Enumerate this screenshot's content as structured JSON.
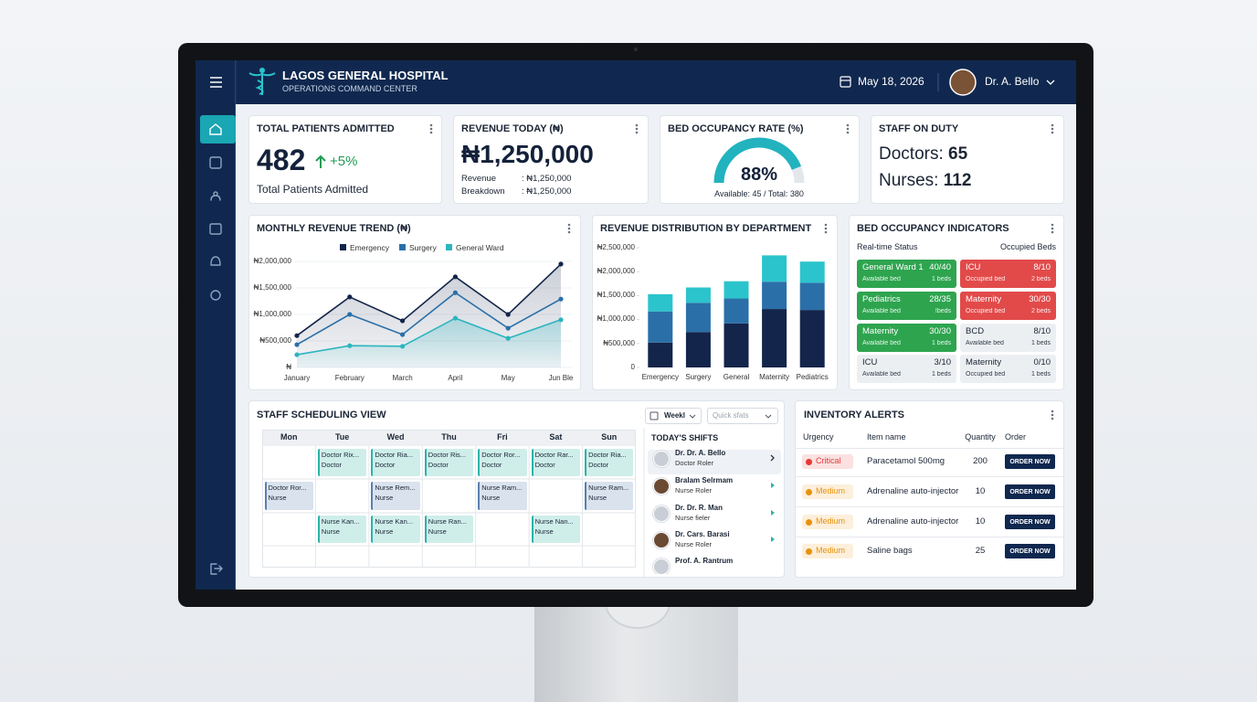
{
  "header": {
    "title": "LAGOS GENERAL HOSPITAL",
    "subtitle": "OPERATIONS COMMAND CENTER",
    "date": "May 18, 2026",
    "user": "Dr. A. Bello"
  },
  "kpis": {
    "patients": {
      "title": "TOTAL PATIENTS ADMITTED",
      "value": "482",
      "change": "+5%",
      "caption": "Total Patients Admitted"
    },
    "revenue": {
      "title": "REVENUE TODAY (₦)",
      "value": "₦1,250,000",
      "rows": [
        [
          "Revenue",
          ": ₦1,250,000"
        ],
        [
          "Breakdown",
          ": ₦1,250,000"
        ]
      ]
    },
    "occupancy": {
      "title": "BED OCCUPANCY RATE (%)",
      "gauge": {
        "value": 88,
        "label": "88%",
        "ylim": [
          0,
          100
        ],
        "color": "#22b3bf"
      },
      "caption": "Available: 45 / Total: 380"
    },
    "staff": {
      "title": "STAFF ON DUTY",
      "rows": [
        [
          "Doctors: ",
          "65"
        ],
        [
          "Nurses: ",
          "112"
        ]
      ]
    }
  },
  "chart_data": [
    {
      "type": "line",
      "title": "MONTHLY REVENUE TREND (₦)",
      "legend": "top",
      "categories": [
        "January",
        "February",
        "March",
        "April",
        "May",
        "Jun Ble"
      ],
      "series": [
        {
          "name": "Emergency",
          "color": "#13254a",
          "values": [
            600000,
            1330000,
            880000,
            1710000,
            1000000,
            1950000
          ]
        },
        {
          "name": "Surgery",
          "color": "#2a6fa8",
          "values": [
            430000,
            1000000,
            620000,
            1410000,
            740000,
            1290000
          ]
        },
        {
          "name": "General Ward",
          "color": "#2bb5bf",
          "values": [
            240000,
            410000,
            400000,
            930000,
            550000,
            900000
          ]
        }
      ],
      "ylim": [
        0,
        2000000
      ],
      "yticks": [
        {
          "value": 0,
          "label": "₦"
        },
        {
          "value": 500000,
          "label": "₦500,000"
        },
        {
          "value": 1000000,
          "label": "₦1,000,000"
        },
        {
          "value": 1500000,
          "label": "₦1,500,000"
        },
        {
          "value": 2000000,
          "label": "₦2,000,000"
        }
      ],
      "grid": true
    },
    {
      "type": "bar",
      "stacked": true,
      "title": "REVENUE DISTRIBUTION BY DEPARTMENT",
      "categories": [
        "Emergency",
        "Surgery",
        "General",
        "Maternity",
        "Pediatrics"
      ],
      "series": [
        {
          "color": "#13254a",
          "values": [
            520000,
            740000,
            920000,
            1220000,
            1200000
          ]
        },
        {
          "color": "#2a6fa8",
          "values": [
            650000,
            610000,
            520000,
            570000,
            570000
          ]
        },
        {
          "color": "#2bc4cc",
          "values": [
            360000,
            320000,
            360000,
            550000,
            440000
          ]
        }
      ],
      "ylim": [
        0,
        2500000
      ],
      "yticks": [
        0,
        {
          "value": 500000,
          "label": "₦500,000"
        },
        {
          "value": 1000000,
          "label": "₦1,000,000"
        },
        {
          "value": 1500000,
          "label": "₦1,500,000"
        },
        {
          "value": 2000000,
          "label": "₦2,000,000"
        },
        {
          "value": 2500000,
          "label": "₦2,500,000"
        }
      ],
      "grid": false
    }
  ],
  "bed_indicators": {
    "title": "BED OCCUPANCY INDICATORS",
    "left_label": "Real-time Status",
    "right_label": "Occupied Beds",
    "cells": [
      {
        "name": "General Ward 1",
        "ratio": "40/40",
        "status": "Available bed",
        "beds": "1 beds",
        "color": "#2ea44f"
      },
      {
        "name": "ICU",
        "ratio": "8/10",
        "status": "Occupied bed",
        "beds": "2 beds",
        "color": "#e24a4a"
      },
      {
        "name": "Pediatrics",
        "ratio": "28/35",
        "status": "Available bed",
        "beds": "!beds",
        "color": "#2ea44f"
      },
      {
        "name": "Maternity",
        "ratio": "30/30",
        "status": "Occupied bed",
        "beds": "2 beds",
        "color": "#e24a4a"
      },
      {
        "name": "Maternity",
        "ratio": "30/30",
        "status": "Available bed",
        "beds": "1 beds",
        "color": "#2ea44f"
      },
      {
        "name": "BCD",
        "ratio": "8/10",
        "status": "Available bed",
        "beds": "1 beds",
        "color": "#eceff2"
      },
      {
        "name": "ICU",
        "ratio": "3/10",
        "status": "Available bed",
        "beds": "1 beds",
        "color": "#eceff2"
      },
      {
        "name": "Maternity",
        "ratio": "0/10",
        "status": "Occupied bed",
        "beds": "1 beds",
        "color": "#eceff2"
      }
    ]
  },
  "schedule": {
    "title": "STAFF SCHEDULING VIEW",
    "view": "Weekl",
    "search": "Quick sfats",
    "days": [
      "Mon",
      "Tue",
      "Wed",
      "Thu",
      "Fri",
      "Sat",
      "Sun"
    ],
    "rows": [
      [
        null,
        {
          "name": "Doctor Rix...",
          "role": "Doctor"
        },
        {
          "name": "Doctor Ria...",
          "role": "Doctor"
        },
        {
          "name": "Doctor Ris...",
          "role": "Doctor"
        },
        {
          "name": "Doctor Ror...",
          "role": "Doctor"
        },
        {
          "name": "Doctor Rar...",
          "role": "Doctor"
        },
        {
          "name": "Doctor Ria...",
          "role": "Doctor"
        }
      ],
      [
        {
          "name": "Doctor Ror...",
          "role": "Nurse"
        },
        null,
        {
          "name": "Nurse Rem...",
          "role": "Nurse"
        },
        null,
        {
          "name": "Nurse Ram...",
          "role": "Nurse"
        },
        null,
        {
          "name": "Nurse Ram...",
          "role": "Nurse"
        }
      ],
      [
        null,
        {
          "name": "Nurse Kan...",
          "role": "Nurse"
        },
        {
          "name": "Nurse Kan...",
          "role": "Nurse"
        },
        {
          "name": "Nurse Ran...",
          "role": "Nurse"
        },
        null,
        {
          "name": "Nurse Nan...",
          "role": "Nurse"
        },
        null
      ],
      [
        null,
        null,
        null,
        null,
        null,
        null,
        null
      ]
    ],
    "shifts_title": "TODAY'S SHIFTS",
    "shifts": [
      {
        "name": "Dr. Dr. A. Bello",
        "role": "Doctor Roler"
      },
      {
        "name": "Bralam Selrmam",
        "role": "Nurse Roler"
      },
      {
        "name": "Dr. Dr. R. Man",
        "role": "Nurse fieler"
      },
      {
        "name": "Dr. Cars. Barasi",
        "role": "Nurse Roler"
      },
      {
        "name": "Prof. A. Rantrum"
      }
    ]
  },
  "inventory": {
    "title": "INVENTORY ALERTS",
    "columns": [
      "Urgency",
      "Item name",
      "Quantity",
      "Order"
    ],
    "rows": [
      {
        "urgency": "Critical",
        "color": "#e53935",
        "item": "Paracetamol 500mg",
        "quantity": 200,
        "order": "ORDER NOW"
      },
      {
        "urgency": "Medium",
        "color": "#e8920e",
        "item": "Adrenaline auto-injector",
        "quantity": 10,
        "order": "ORDER NOW"
      },
      {
        "urgency": "Medium",
        "color": "#e8920e",
        "item": "Adrenaline auto-injector",
        "quantity": 10,
        "order": "ORDER NOW"
      },
      {
        "urgency": "Medium",
        "color": "#e8920e",
        "item": "Saline bags",
        "quantity": 25,
        "order": "ORDER NOW"
      }
    ]
  }
}
